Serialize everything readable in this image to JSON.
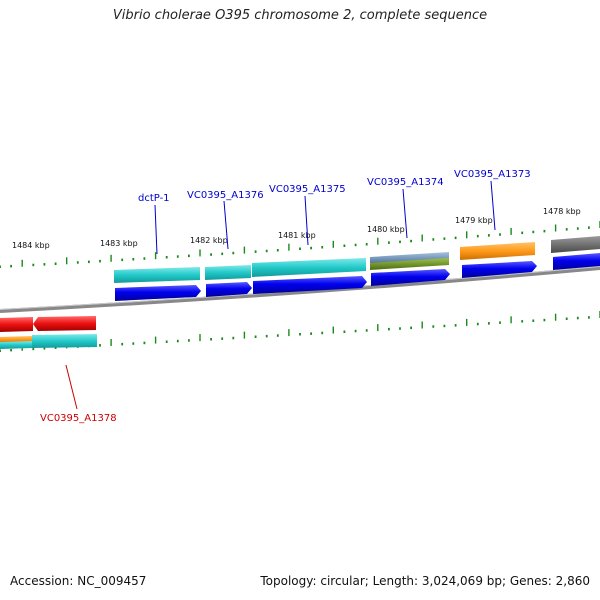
{
  "title": "Vibrio cholerae O395 chromosome 2, complete sequence",
  "footer": {
    "accession": "Accession: NC_009457",
    "summary": "Topology: circular; Length: 3,024,069 bp; Genes: 2,860"
  },
  "colors": {
    "forward_label": "#0000cc",
    "reverse_label": "#cc0000",
    "cds": "#0000ee",
    "tick": "#1a8a1a",
    "backbone": "#8a8a8a",
    "cyan": "#22c9c9",
    "orange": "#ff9a1a",
    "red": "#ee1111",
    "steel": "#6a8fb5",
    "olive": "#6b8e23",
    "gray": "#6e6e6e"
  },
  "ticks": [
    "1484 kbp",
    "1483 kbp",
    "1482 kbp",
    "1481 kbp",
    "1480 kbp",
    "1479 kbp",
    "1478 kbp"
  ],
  "gene_labels": [
    {
      "text": "dctP-1",
      "strand": "forward"
    },
    {
      "text": "VC0395_A1376",
      "strand": "forward"
    },
    {
      "text": "VC0395_A1375",
      "strand": "forward"
    },
    {
      "text": "VC0395_A1374",
      "strand": "forward"
    },
    {
      "text": "VC0395_A1373",
      "strand": "forward"
    },
    {
      "text": "VC0395_A1378",
      "strand": "reverse"
    }
  ]
}
